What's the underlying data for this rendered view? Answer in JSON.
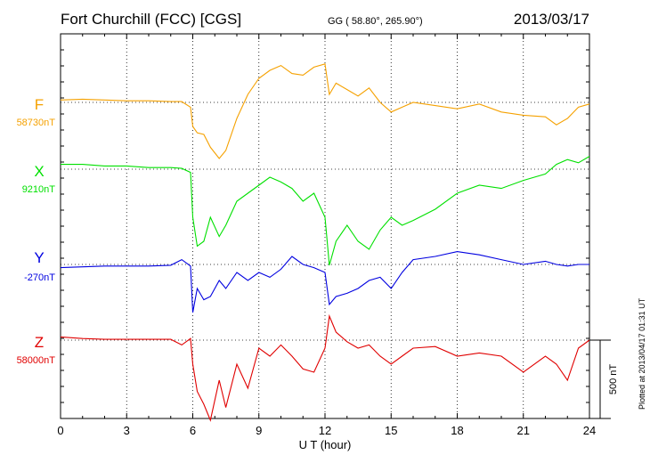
{
  "header": {
    "station": "Fort Churchill (FCC)  [CGS]",
    "coords": "GG ( 58.80°, 265.90°)",
    "date": "2013/03/17"
  },
  "footer": {
    "plotted": "Plotted at 2013/04/17 01:31  UT"
  },
  "chart_data": {
    "type": "line",
    "xlabel": "U T (hour)",
    "xlim": [
      0,
      24
    ],
    "xticks": [
      "0",
      "3",
      "6",
      "9",
      "12",
      "15",
      "18",
      "21",
      "24"
    ],
    "scale_bar": "500 nT",
    "grid": true,
    "series": [
      {
        "name": "F",
        "baseline": "58730nT",
        "color": "#f5a100",
        "x": [
          0,
          1,
          2,
          3,
          4,
          5,
          5.5,
          5.9,
          6,
          6.2,
          6.5,
          6.8,
          7.2,
          7.5,
          8,
          8.5,
          9,
          9.5,
          10,
          10.5,
          11,
          11.5,
          12,
          12.2,
          12.5,
          13,
          13.5,
          14,
          14.5,
          15,
          15.5,
          16,
          17,
          18,
          19,
          20,
          21,
          22,
          22.5,
          23,
          23.5,
          24
        ],
        "y": [
          15,
          20,
          15,
          10,
          10,
          5,
          5,
          -30,
          -150,
          -190,
          -200,
          -280,
          -350,
          -300,
          -100,
          50,
          150,
          200,
          230,
          180,
          170,
          220,
          240,
          50,
          120,
          80,
          40,
          90,
          0,
          -60,
          -30,
          0,
          -20,
          -40,
          -10,
          -60,
          -80,
          -90,
          -140,
          -100,
          -30,
          -10
        ]
      },
      {
        "name": "X",
        "baseline": "9210nT",
        "color": "#00e000",
        "x": [
          0,
          1,
          2,
          3,
          4,
          5,
          5.5,
          5.9,
          6,
          6.2,
          6.5,
          6.8,
          7.2,
          7.5,
          8,
          8.5,
          9,
          9.5,
          10,
          10.5,
          11,
          11.5,
          12,
          12.2,
          12.5,
          13,
          13.5,
          14,
          14.5,
          15,
          15.5,
          16,
          17,
          18,
          19,
          20,
          21,
          22,
          22.5,
          23,
          23.5,
          24
        ],
        "y": [
          30,
          30,
          20,
          20,
          10,
          10,
          5,
          -20,
          -300,
          -480,
          -450,
          -300,
          -420,
          -350,
          -200,
          -150,
          -100,
          -50,
          -80,
          -120,
          -200,
          -150,
          -300,
          -600,
          -450,
          -350,
          -450,
          -500,
          -380,
          -300,
          -350,
          -320,
          -250,
          -150,
          -100,
          -120,
          -70,
          -30,
          30,
          60,
          40,
          80
        ]
      },
      {
        "name": "Y",
        "baseline": "-270nT",
        "color": "#0000e0",
        "x": [
          0,
          1,
          2,
          3,
          4,
          5,
          5.5,
          5.9,
          6,
          6.2,
          6.5,
          6.8,
          7.2,
          7.5,
          8,
          8.5,
          9,
          9.5,
          10,
          10.5,
          11,
          11.5,
          12,
          12.2,
          12.5,
          13,
          13.5,
          14,
          14.5,
          15,
          15.5,
          16,
          17,
          18,
          19,
          20,
          21,
          22,
          22.5,
          23,
          23.5,
          24
        ],
        "y": [
          -20,
          -15,
          -10,
          -10,
          -10,
          -5,
          30,
          -10,
          -300,
          -150,
          -220,
          -200,
          -100,
          -150,
          -50,
          -100,
          -50,
          -80,
          -30,
          50,
          0,
          -20,
          -50,
          -250,
          -200,
          -180,
          -150,
          -100,
          -80,
          -150,
          -50,
          30,
          50,
          80,
          60,
          30,
          0,
          20,
          0,
          -10,
          0,
          0
        ]
      },
      {
        "name": "Z",
        "baseline": "58000nT",
        "color": "#e00000",
        "x": [
          0,
          1,
          2,
          3,
          4,
          5,
          5.5,
          5.9,
          6,
          6.2,
          6.5,
          6.8,
          7.2,
          7.5,
          8,
          8.5,
          9,
          9.5,
          10,
          10.5,
          11,
          11.5,
          12,
          12.2,
          12.5,
          13,
          13.5,
          14,
          14.5,
          15,
          15.5,
          16,
          17,
          18,
          19,
          20,
          21,
          22,
          22.5,
          23,
          23.5,
          24
        ],
        "y": [
          20,
          10,
          5,
          5,
          5,
          5,
          -30,
          10,
          -150,
          -320,
          -400,
          -500,
          -250,
          -420,
          -150,
          -300,
          -50,
          -100,
          -30,
          -100,
          -180,
          -200,
          -50,
          150,
          50,
          -10,
          -50,
          -30,
          -100,
          -150,
          -100,
          -50,
          -40,
          -100,
          -80,
          -100,
          -200,
          -100,
          -150,
          -250,
          -50,
          0
        ]
      }
    ]
  }
}
